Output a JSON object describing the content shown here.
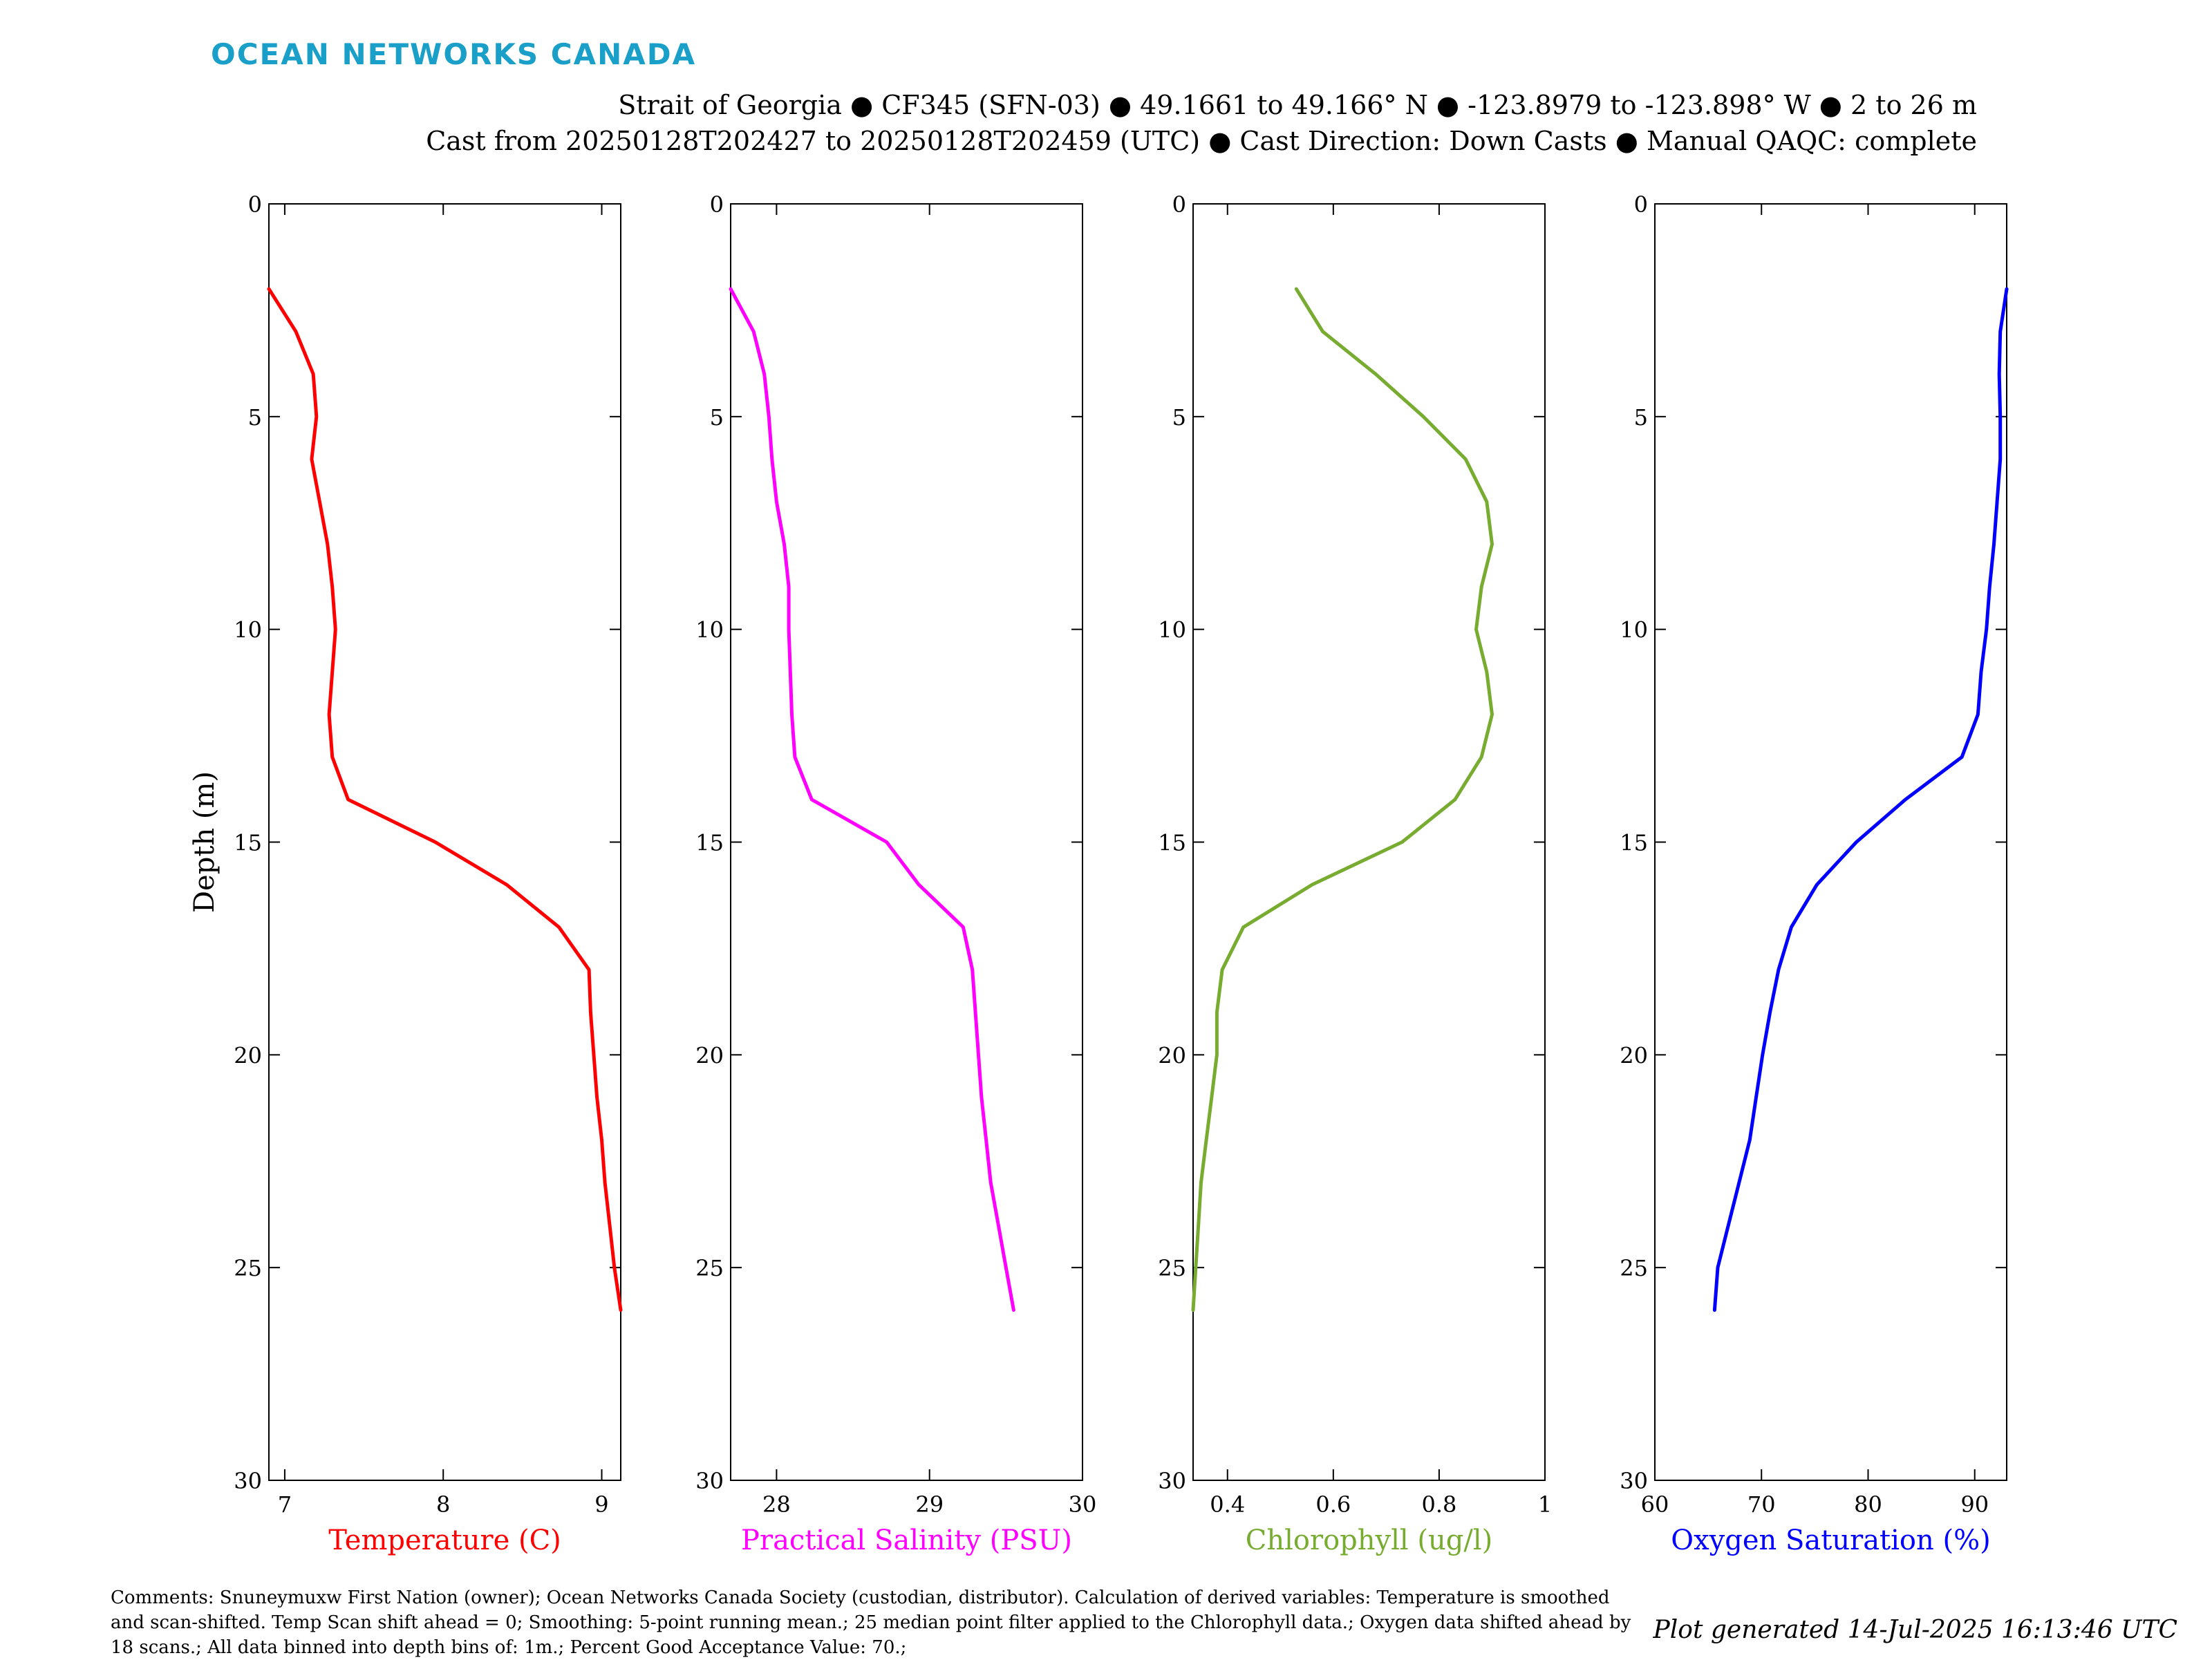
{
  "brand": {
    "text": "OCEAN NETWORKS CANADA",
    "color": "#1aa0c8"
  },
  "header": {
    "line1": "Strait of Georgia ● CF345 (SFN-03) ● 49.1661 to 49.166° N ● -123.8979 to -123.898° W ● 2 to 26 m",
    "line2": "Cast from 20250128T202427 to 20250128T202459 (UTC) ● Cast Direction: Down Casts ● Manual QAQC: complete"
  },
  "footer": {
    "comments": "Comments: Snuneymuxw First Nation (owner); Ocean Networks Canada Society (custodian, distributor). Calculation of derived variables: Temperature is smoothed and scan-shifted. Temp Scan shift ahead = 0; Smoothing: 5-point running mean.; 25 median point filter applied to the Chlorophyll data.; Oxygen data shifted ahead by 18 scans.; All data binned into depth bins of: 1m.; Percent Good Acceptance Value: 70.;",
    "generated": "Plot generated 14-Jul-2025 16:13:46 UTC"
  },
  "chart_data": [
    {
      "type": "line",
      "xlabel": "Temperature (C)",
      "ylabel": "Depth (m)",
      "color": "#ff0000",
      "xlim": [
        6.9,
        9.12
      ],
      "ylim": [
        0,
        30
      ],
      "y_reversed": true,
      "xticks": [
        7,
        8,
        9
      ],
      "yticks": [
        0,
        5,
        10,
        15,
        20,
        25,
        30
      ],
      "depth": [
        2,
        3,
        4,
        5,
        6,
        7,
        8,
        9,
        10,
        11,
        12,
        13,
        14,
        15,
        16,
        17,
        18,
        19,
        20,
        21,
        22,
        23,
        24,
        25,
        26
      ],
      "values": [
        6.9,
        7.07,
        7.18,
        7.2,
        7.17,
        7.22,
        7.27,
        7.3,
        7.32,
        7.3,
        7.28,
        7.3,
        7.4,
        7.95,
        8.4,
        8.73,
        8.92,
        8.93,
        8.95,
        8.97,
        9.0,
        9.02,
        9.05,
        9.08,
        9.12
      ]
    },
    {
      "type": "line",
      "xlabel": "Practical Salinity (PSU)",
      "ylabel": "",
      "color": "#ff00ff",
      "xlim": [
        27.7,
        30
      ],
      "ylim": [
        0,
        30
      ],
      "y_reversed": true,
      "xticks": [
        28,
        29,
        30
      ],
      "yticks": [
        0,
        5,
        10,
        15,
        20,
        25,
        30
      ],
      "depth": [
        2,
        3,
        4,
        5,
        6,
        7,
        8,
        9,
        10,
        11,
        12,
        13,
        14,
        15,
        16,
        17,
        18,
        19,
        20,
        21,
        22,
        23,
        24,
        25,
        26
      ],
      "values": [
        27.7,
        27.85,
        27.92,
        27.95,
        27.97,
        28.0,
        28.05,
        28.08,
        28.08,
        28.09,
        28.1,
        28.12,
        28.23,
        28.72,
        28.93,
        29.22,
        29.28,
        29.3,
        29.32,
        29.34,
        29.37,
        29.4,
        29.45,
        29.5,
        29.55
      ]
    },
    {
      "type": "line",
      "xlabel": "Chlorophyll (ug/l)",
      "ylabel": "",
      "color": "#77ac30",
      "xlim": [
        0.335,
        1.0
      ],
      "ylim": [
        0,
        30
      ],
      "y_reversed": true,
      "xticks": [
        0.4,
        0.6,
        0.8,
        1
      ],
      "yticks": [
        0,
        5,
        10,
        15,
        20,
        25,
        30
      ],
      "depth": [
        2,
        3,
        4,
        5,
        6,
        7,
        8,
        9,
        10,
        11,
        12,
        13,
        14,
        15,
        16,
        17,
        18,
        19,
        20,
        21,
        22,
        23,
        24,
        25,
        26
      ],
      "values": [
        0.53,
        0.58,
        0.68,
        0.77,
        0.85,
        0.89,
        0.9,
        0.88,
        0.87,
        0.89,
        0.9,
        0.88,
        0.83,
        0.73,
        0.56,
        0.43,
        0.39,
        0.38,
        0.38,
        0.37,
        0.36,
        0.35,
        0.345,
        0.34,
        0.335
      ]
    },
    {
      "type": "line",
      "xlabel": "Oxygen Saturation (%)",
      "ylabel": "",
      "color": "#0000ff",
      "xlim": [
        60,
        93
      ],
      "ylim": [
        0,
        30
      ],
      "y_reversed": true,
      "xticks": [
        60,
        70,
        80,
        90
      ],
      "yticks": [
        0,
        5,
        10,
        15,
        20,
        25,
        30
      ],
      "depth": [
        2,
        3,
        4,
        5,
        6,
        7,
        8,
        9,
        10,
        11,
        12,
        13,
        14,
        15,
        16,
        17,
        18,
        19,
        20,
        21,
        22,
        23,
        24,
        25,
        26
      ],
      "values": [
        93,
        92.4,
        92.3,
        92.4,
        92.4,
        92.1,
        91.8,
        91.4,
        91.1,
        90.6,
        90.3,
        88.8,
        83.5,
        78.9,
        75.2,
        72.8,
        71.6,
        70.8,
        70.1,
        69.5,
        68.9,
        67.9,
        66.9,
        65.9,
        65.6
      ]
    }
  ]
}
